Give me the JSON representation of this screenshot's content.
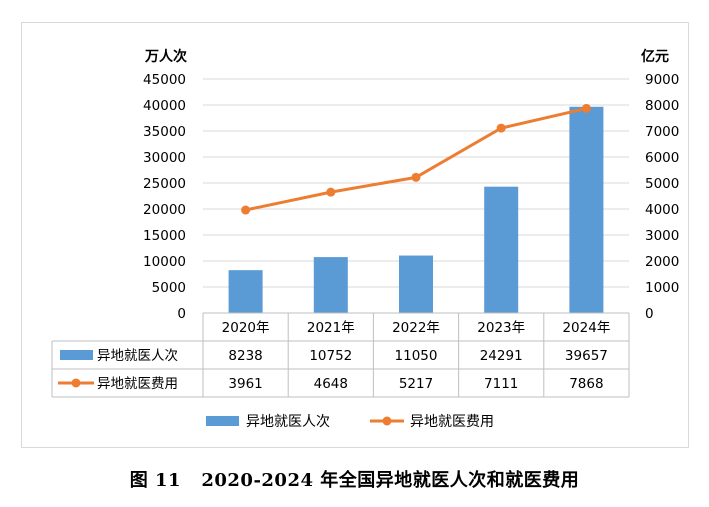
{
  "chart_data": {
    "type": "bar+line",
    "categories": [
      "2020年",
      "2021年",
      "2022年",
      "2023年",
      "2024年"
    ],
    "series": [
      {
        "name": "异地就医人次",
        "kind": "bar",
        "axis": "left",
        "color": "#5b9bd5",
        "values": [
          8238,
          10752,
          11050,
          24291,
          39657
        ]
      },
      {
        "name": "异地就医费用",
        "kind": "line",
        "axis": "right",
        "color": "#ed7d31",
        "values": [
          3961,
          4648,
          5217,
          7111,
          7868
        ]
      }
    ],
    "left_axis": {
      "unit": "万人次",
      "min": 0,
      "max": 45000,
      "step": 5000
    },
    "right_axis": {
      "unit": "亿元",
      "min": 0,
      "max": 9000,
      "step": 1000
    },
    "data_table": true,
    "legend_position": "bottom"
  },
  "caption": {
    "figure": "图 11",
    "title": "2020-2024 年全国异地就医人次和就医费用"
  }
}
